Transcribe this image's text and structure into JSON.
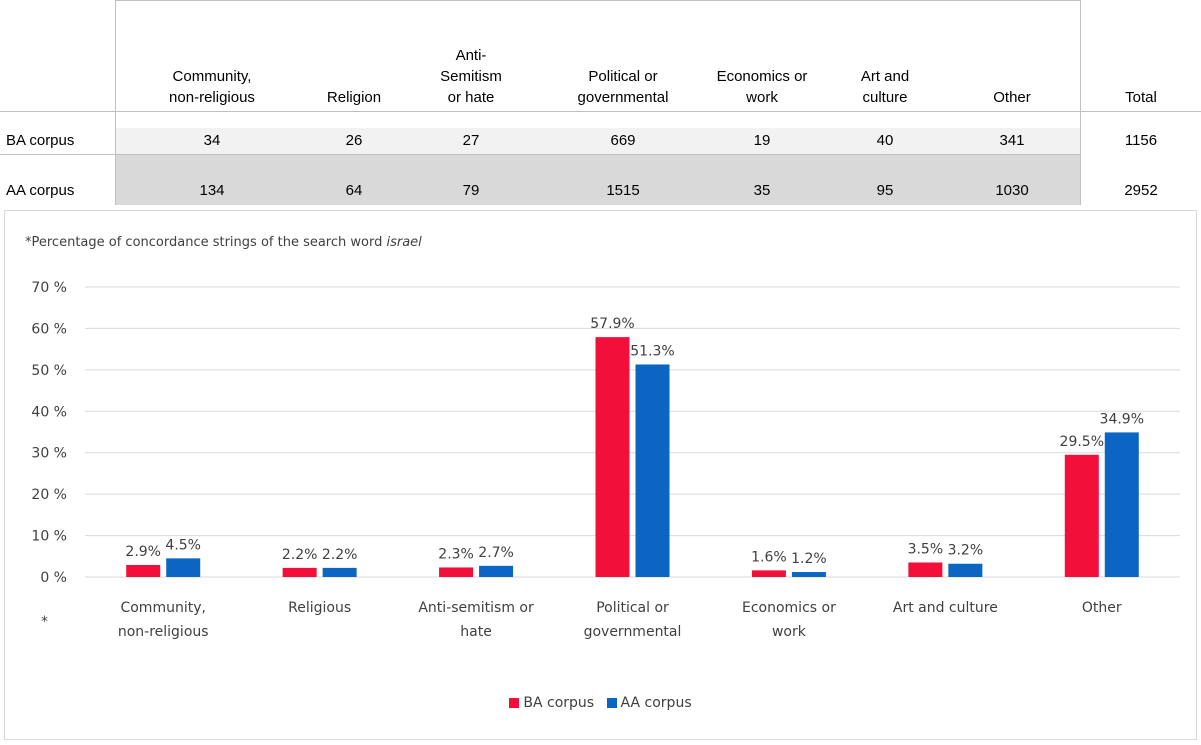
{
  "table": {
    "headers": [
      [
        "Community,",
        "non-religious"
      ],
      [
        "Religion"
      ],
      [
        "Anti-",
        "Semitism",
        "or hate"
      ],
      [
        "Political or",
        "governmental"
      ],
      [
        "Economics or",
        "work"
      ],
      [
        "Art and",
        "culture"
      ],
      [
        "Other"
      ],
      [
        "Total"
      ]
    ],
    "rows": [
      {
        "label": "BA corpus",
        "values": [
          "34",
          "26",
          "27",
          "669",
          "19",
          "40",
          "341",
          "1156"
        ]
      },
      {
        "label": "AA corpus",
        "values": [
          "134",
          "64",
          "79",
          "1515",
          "35",
          "95",
          "1030",
          "2952"
        ]
      }
    ]
  },
  "chart_note": {
    "prefix": "*Percentage of concordance strings of the search word ",
    "term": "israel"
  },
  "footnote_marker": "*",
  "colors": {
    "ba": "#f20f3a",
    "aa": "#0a66c2",
    "grid": "#d9d9d9",
    "row_light": "#f2f2f2",
    "row_dark": "#d9d9d9"
  },
  "chart_data": {
    "type": "bar",
    "categories": [
      [
        "Community,",
        "non-religious"
      ],
      [
        "Religious"
      ],
      [
        "Anti-semitism or",
        "hate"
      ],
      [
        "Political or",
        "governmental"
      ],
      [
        "Economics or",
        "work"
      ],
      [
        "Art and culture"
      ],
      [
        "Other"
      ]
    ],
    "series": [
      {
        "name": "BA corpus",
        "values": [
          2.9,
          2.2,
          2.3,
          57.9,
          1.6,
          3.5,
          29.5
        ],
        "labels": [
          "2.9%",
          "2.2%",
          "2.3%",
          "57.9%",
          "1.6%",
          "3.5%",
          "29.5%"
        ]
      },
      {
        "name": "AA corpus",
        "values": [
          4.5,
          2.2,
          2.7,
          51.3,
          1.2,
          3.2,
          34.9
        ],
        "labels": [
          "4.5%",
          "2.2%",
          "2.7%",
          "51.3%",
          "1.2%",
          "3.2%",
          "34.9%"
        ]
      }
    ],
    "yticks": [
      "0 %",
      "10 %",
      "20 %",
      "30 %",
      "40 %",
      "50 %",
      "60 %",
      "70 %"
    ],
    "ylim": [
      0,
      70
    ],
    "grid": true,
    "legend": "bottom"
  }
}
